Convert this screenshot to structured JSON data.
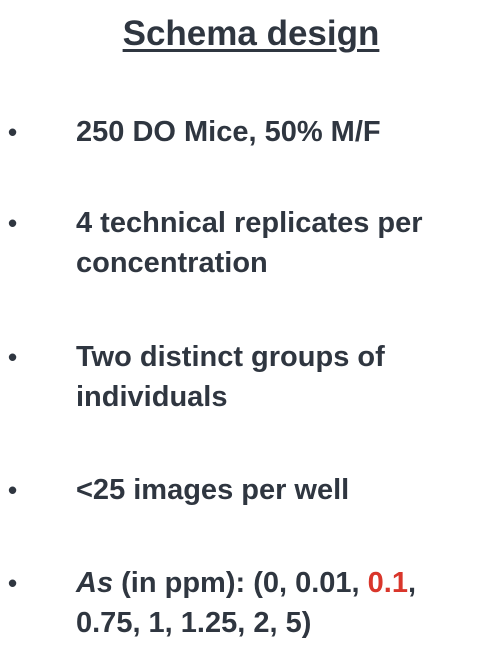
{
  "slide": {
    "title": "Schema design",
    "bullet_symbol": "•",
    "bullets": [
      {
        "lines": [
          "250 DO Mice, 50% M/F"
        ]
      },
      {
        "lines": [
          "4 technical replicates per",
          "concentration"
        ]
      },
      {
        "lines": [
          "Two distinct groups of",
          "individuals"
        ]
      },
      {
        "lines": [
          "<25 images per well"
        ]
      },
      {
        "label_italic": "As",
        "line1_before": " (in ppm): (0, 0.01, ",
        "line1_highlight": "0.1",
        "line1_after": ",",
        "line2": "0.75, 1, 1.25, 2, 5)"
      }
    ]
  },
  "colors": {
    "text": "#2f3640",
    "highlight": "#d9362b",
    "background": "#ffffff"
  }
}
